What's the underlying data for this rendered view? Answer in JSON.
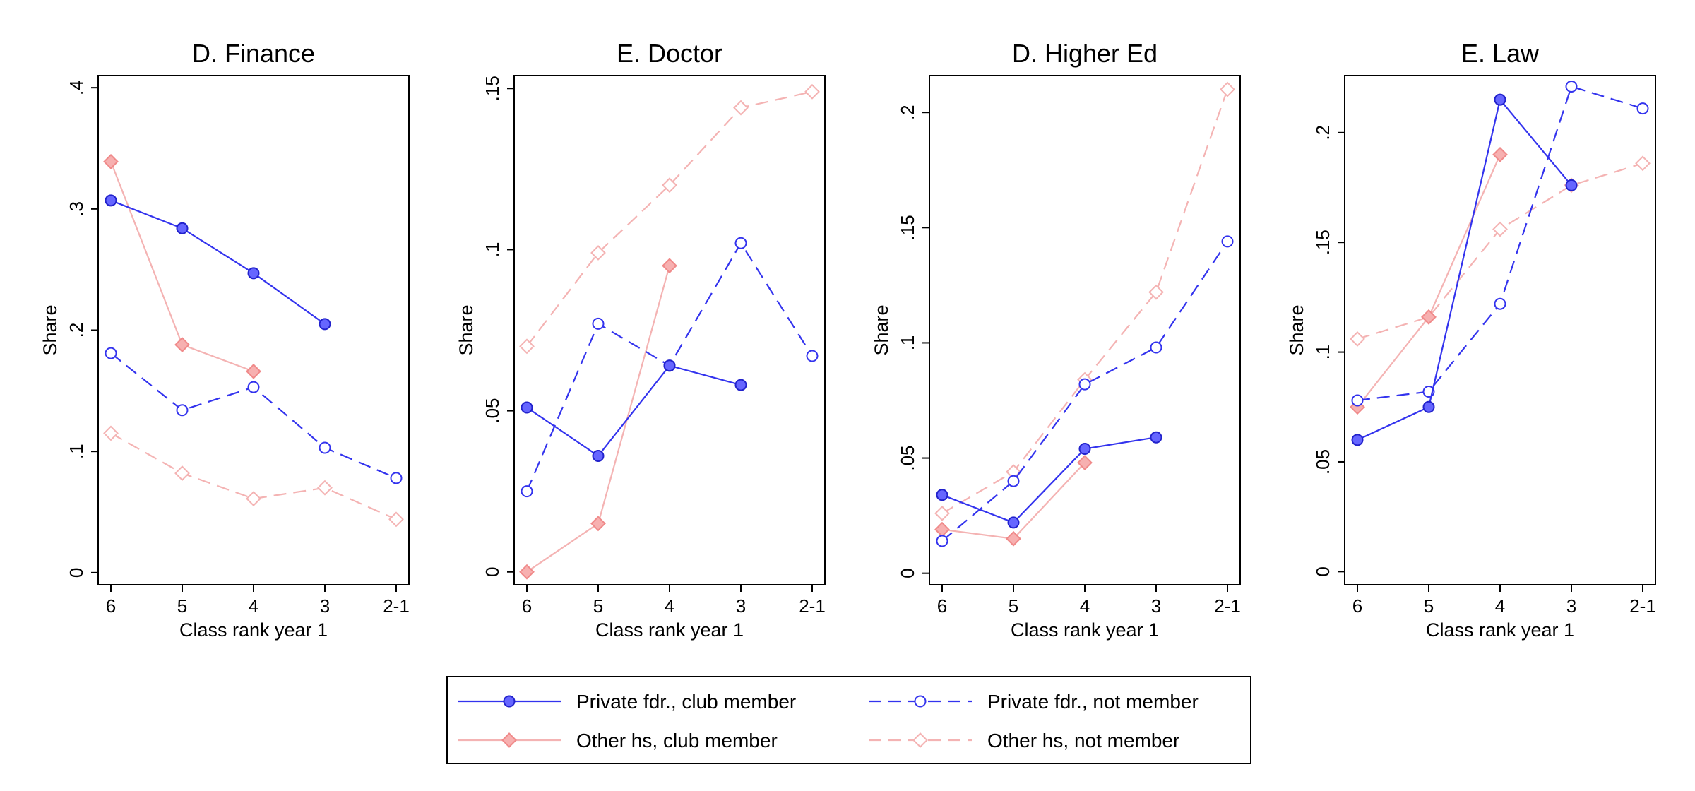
{
  "chart_data": [
    {
      "type": "line",
      "title": "D. Finance",
      "xlabel": "Class rank year 1",
      "ylabel": "Share",
      "categories": [
        "6",
        "5",
        "4",
        "3",
        "2-1"
      ],
      "ylim": [
        -0.01,
        0.41
      ],
      "yticks": [
        0,
        0.1,
        0.2,
        0.3,
        0.4
      ],
      "yticklabels": [
        "0",
        ".1",
        ".2",
        ".3",
        ".4"
      ],
      "series": [
        {
          "name": "Private fdr., club member",
          "values": [
            0.307,
            0.284,
            0.247,
            0.205,
            null
          ]
        },
        {
          "name": "Private fdr., not member",
          "values": [
            0.181,
            0.134,
            0.153,
            0.103,
            0.078
          ]
        },
        {
          "name": "Other hs, club member",
          "values": [
            0.339,
            0.188,
            0.166,
            null,
            null
          ]
        },
        {
          "name": "Other hs, not member",
          "values": [
            0.115,
            0.082,
            0.061,
            0.07,
            0.044
          ]
        }
      ]
    },
    {
      "type": "line",
      "title": "E. Doctor",
      "xlabel": "Class rank year 1",
      "ylabel": "Share",
      "categories": [
        "6",
        "5",
        "4",
        "3",
        "2-1"
      ],
      "ylim": [
        -0.004,
        0.154
      ],
      "yticks": [
        0,
        0.05,
        0.1,
        0.15
      ],
      "yticklabels": [
        "0",
        ".05",
        ".1",
        ".15"
      ],
      "series": [
        {
          "name": "Private fdr., club member",
          "values": [
            0.051,
            0.036,
            0.064,
            0.058,
            null
          ]
        },
        {
          "name": "Private fdr., not member",
          "values": [
            0.025,
            0.077,
            0.064,
            0.102,
            0.067
          ]
        },
        {
          "name": "Other hs, club member",
          "values": [
            0.0,
            0.015,
            0.095,
            null,
            null
          ]
        },
        {
          "name": "Other hs, not member",
          "values": [
            0.07,
            0.099,
            0.12,
            0.144,
            0.149
          ]
        }
      ]
    },
    {
      "type": "line",
      "title": "D. Higher Ed",
      "xlabel": "Class rank year 1",
      "ylabel": "Share",
      "categories": [
        "6",
        "5",
        "4",
        "3",
        "2-1"
      ],
      "ylim": [
        -0.005,
        0.216
      ],
      "yticks": [
        0,
        0.05,
        0.1,
        0.15,
        0.2
      ],
      "yticklabels": [
        "0",
        ".05",
        ".1",
        ".15",
        ".2"
      ],
      "series": [
        {
          "name": "Private fdr., club member",
          "values": [
            0.034,
            0.022,
            0.054,
            0.059,
            null
          ]
        },
        {
          "name": "Private fdr., not member",
          "values": [
            0.014,
            0.04,
            0.082,
            0.098,
            0.144
          ]
        },
        {
          "name": "Other hs, club member",
          "values": [
            0.019,
            0.015,
            0.048,
            null,
            null
          ]
        },
        {
          "name": "Other hs, not member",
          "values": [
            0.026,
            0.044,
            0.084,
            0.122,
            0.21
          ]
        }
      ]
    },
    {
      "type": "line",
      "title": "E. Law",
      "xlabel": "Class rank year 1",
      "ylabel": "Share",
      "categories": [
        "6",
        "5",
        "4",
        "3",
        "2-1"
      ],
      "ylim": [
        -0.006,
        0.226
      ],
      "yticks": [
        0,
        0.05,
        0.1,
        0.15,
        0.2
      ],
      "yticklabels": [
        "0",
        ".05",
        ".1",
        ".15",
        ".2"
      ],
      "series": [
        {
          "name": "Private fdr., club member",
          "values": [
            0.06,
            0.075,
            0.215,
            0.176,
            null
          ]
        },
        {
          "name": "Private fdr., not member",
          "values": [
            0.078,
            0.082,
            0.122,
            0.221,
            0.211
          ]
        },
        {
          "name": "Other hs, club member",
          "values": [
            0.075,
            0.116,
            0.19,
            null,
            null
          ]
        },
        {
          "name": "Other hs, not member",
          "values": [
            0.106,
            0.116,
            0.156,
            0.176,
            0.186
          ]
        }
      ]
    }
  ],
  "legend": {
    "placement": "bottom",
    "entries": [
      {
        "label": "Private fdr., club member",
        "color": "#3333ee",
        "dash": "solid",
        "marker": "filled-circle"
      },
      {
        "label": "Private fdr., not member",
        "color": "#3333ee",
        "dash": "dashed",
        "marker": "hollow-circle"
      },
      {
        "label": "Other hs, club member",
        "color": "#f08a8a",
        "dash": "solid",
        "marker": "filled-diamond"
      },
      {
        "label": "Other hs, not member",
        "color": "#f4a8a8",
        "dash": "dashed",
        "marker": "hollow-diamond"
      }
    ]
  },
  "colors": {
    "blue": "#3333ee",
    "blue_fill": "#6666ff",
    "pink_line": "#f4b3b3",
    "pink_marker": "#f08a8a",
    "pink_fill": "#f7b0b0"
  }
}
